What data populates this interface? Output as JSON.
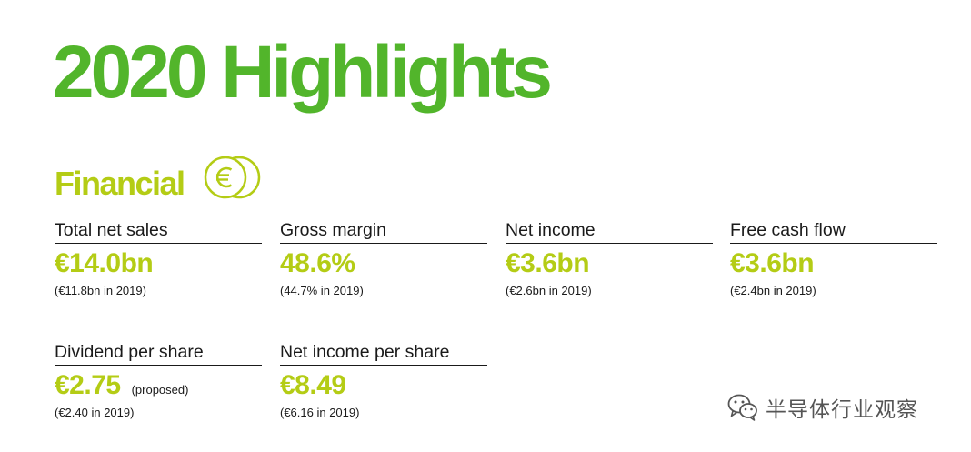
{
  "page": {
    "title": "2020 Highlights"
  },
  "section": {
    "title": "Financial",
    "icon": "euro-coins-icon"
  },
  "metrics": [
    {
      "label": "Total net sales",
      "value": "€14.0bn",
      "note": "",
      "comparison": "(€11.8bn in 2019)"
    },
    {
      "label": "Gross margin",
      "value": "48.6%",
      "note": "",
      "comparison": "(44.7% in 2019)"
    },
    {
      "label": "Net income",
      "value": "€3.6bn",
      "note": "",
      "comparison": "(€2.6bn in 2019)"
    },
    {
      "label": "Free cash flow",
      "value": "€3.6bn",
      "note": "",
      "comparison": "(€2.4bn in 2019)"
    },
    {
      "label": "Dividend per share",
      "value": "€2.75",
      "note": "(proposed)",
      "comparison": "(€2.40 in 2019)"
    },
    {
      "label": "Net income per share",
      "value": "€8.49",
      "note": "",
      "comparison": "(€6.16 in 2019)"
    }
  ],
  "watermark": {
    "text": "半导体行业观察",
    "icon": "wechat-icon"
  },
  "colors": {
    "title_green": "#52b52b",
    "accent_lime": "#b4cc15",
    "text": "#1a1a1a",
    "watermark_gray": "#555555"
  }
}
